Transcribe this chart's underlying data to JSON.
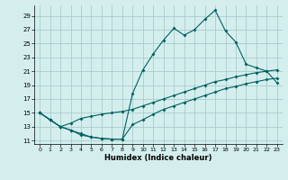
{
  "xlabel": "Humidex (Indice chaleur)",
  "bg_color": "#d4eeee",
  "grid_color": "#aacccc",
  "line_color": "#006060",
  "xlim": [
    -0.5,
    23.5
  ],
  "ylim": [
    10.5,
    30.5
  ],
  "yticks": [
    11,
    13,
    15,
    17,
    19,
    21,
    23,
    25,
    27,
    29
  ],
  "xticks": [
    0,
    1,
    2,
    3,
    4,
    5,
    6,
    7,
    8,
    9,
    10,
    11,
    12,
    13,
    14,
    15,
    16,
    17,
    18,
    19,
    20,
    21,
    22,
    23
  ],
  "line1_x": [
    0,
    1,
    2,
    3,
    4,
    5,
    6,
    7,
    8,
    9,
    10,
    11,
    12,
    13,
    14,
    15,
    16,
    17,
    18,
    19,
    20,
    21,
    22,
    23
  ],
  "line1_y": [
    15.0,
    14.0,
    13.0,
    12.5,
    12.0,
    11.5,
    11.3,
    11.2,
    11.2,
    17.8,
    21.2,
    23.5,
    25.5,
    27.2,
    26.2,
    27.0,
    28.5,
    29.8,
    26.8,
    25.2,
    22.0,
    21.5,
    21.0,
    19.3
  ],
  "line2_x": [
    0,
    1,
    2,
    3,
    4,
    5,
    6,
    7,
    8,
    9,
    10,
    11,
    12,
    13,
    14,
    15,
    16,
    17,
    18,
    19,
    20,
    21,
    22,
    23
  ],
  "line2_y": [
    15.0,
    14.0,
    13.0,
    13.5,
    14.2,
    14.5,
    14.8,
    15.0,
    15.2,
    15.5,
    16.0,
    16.5,
    17.0,
    17.5,
    18.0,
    18.5,
    19.0,
    19.5,
    19.8,
    20.2,
    20.5,
    20.8,
    21.0,
    21.2
  ],
  "line3_x": [
    0,
    1,
    2,
    3,
    4,
    5,
    6,
    7,
    8,
    9,
    10,
    11,
    12,
    13,
    14,
    15,
    16,
    17,
    18,
    19,
    20,
    21,
    22,
    23
  ],
  "line3_y": [
    15.0,
    14.0,
    13.0,
    12.5,
    11.8,
    11.5,
    11.3,
    11.2,
    11.2,
    13.3,
    14.0,
    14.8,
    15.5,
    16.0,
    16.5,
    17.0,
    17.5,
    18.0,
    18.5,
    18.8,
    19.2,
    19.5,
    19.8,
    20.0
  ]
}
